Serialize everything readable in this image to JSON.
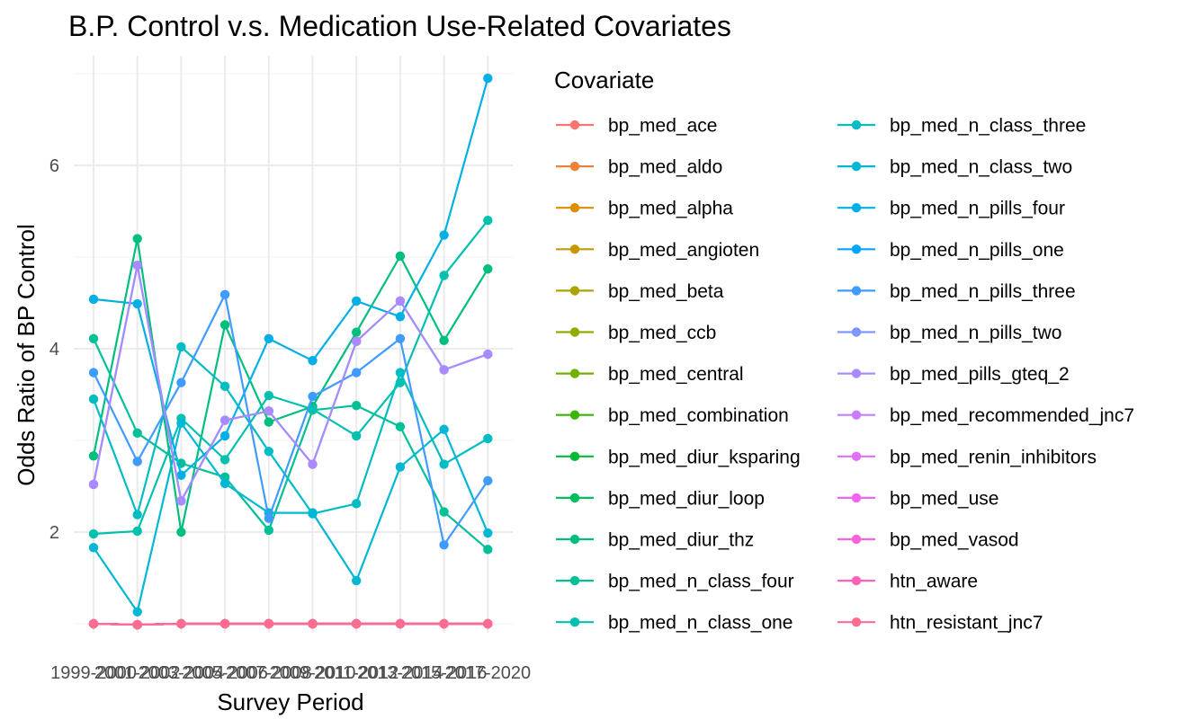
{
  "chart_data": {
    "type": "line",
    "title": "B.P. Control v.s. Medication Use-Related Covariates",
    "xlabel": "Survey Period",
    "ylabel": "Odds Ratio of BP Control",
    "legend_title": "Covariate",
    "legend_placement": "right",
    "grid": true,
    "x_ticks": [
      "1999-2000",
      "2001-2002",
      "2003-2004",
      "2005-2006",
      "2007-2008",
      "2009-2010",
      "2011-2012",
      "2013-2014",
      "2015-2016",
      "2017-2020"
    ],
    "y_ticks": [
      2,
      4,
      6
    ],
    "ylim": [
      0.75,
      7.15
    ],
    "series": [
      {
        "name": "bp_med_ace",
        "color": "#F8766D",
        "values": [
          1.0,
          0.99,
          1.0,
          1.0,
          1.0,
          1.0,
          1.0,
          1.0,
          1.0,
          1.0
        ]
      },
      {
        "name": "bp_med_aldo",
        "color": "#EC8239",
        "values": [
          1.0,
          0.99,
          1.0,
          1.0,
          1.0,
          1.0,
          1.0,
          1.0,
          1.0,
          1.0
        ]
      },
      {
        "name": "bp_med_alpha",
        "color": "#DB8E00",
        "values": [
          1.0,
          0.99,
          1.0,
          1.0,
          1.0,
          1.0,
          1.0,
          1.0,
          1.0,
          1.0
        ]
      },
      {
        "name": "bp_med_angioten",
        "color": "#C69900",
        "values": [
          1.0,
          0.99,
          1.0,
          1.0,
          1.0,
          1.0,
          1.0,
          1.0,
          1.0,
          1.0
        ]
      },
      {
        "name": "bp_med_beta",
        "color": "#AEA200",
        "values": [
          1.0,
          0.99,
          1.0,
          1.0,
          1.0,
          1.0,
          1.0,
          1.0,
          1.0,
          1.0
        ]
      },
      {
        "name": "bp_med_ccb",
        "color": "#93AA00",
        "values": [
          1.0,
          0.99,
          1.0,
          1.0,
          1.0,
          1.0,
          1.0,
          1.0,
          1.0,
          1.0
        ]
      },
      {
        "name": "bp_med_central",
        "color": "#70B000",
        "values": [
          1.0,
          0.99,
          1.0,
          1.0,
          1.0,
          1.0,
          1.0,
          1.0,
          1.0,
          1.0
        ]
      },
      {
        "name": "bp_med_combination",
        "color": "#39B600",
        "values": [
          1.0,
          0.99,
          1.0,
          1.0,
          1.0,
          1.0,
          1.0,
          1.0,
          1.0,
          1.0
        ]
      },
      {
        "name": "bp_med_diur_ksparing",
        "color": "#00BA38",
        "values": [
          1.0,
          0.99,
          1.0,
          1.0,
          1.0,
          1.0,
          1.0,
          1.0,
          1.0,
          1.0
        ]
      },
      {
        "name": "bp_med_diur_loop",
        "color": "#00BD5F",
        "values": [
          1.0,
          0.99,
          1.0,
          1.0,
          1.0,
          1.0,
          1.0,
          1.0,
          1.0,
          1.0
        ]
      },
      {
        "name": "bp_med_diur_thz",
        "color": "#00BF7D",
        "values": [
          2.83,
          5.2,
          2.0,
          4.26,
          3.2,
          3.37,
          4.18,
          5.01,
          4.09,
          4.87
        ]
      },
      {
        "name": "bp_med_n_class_four",
        "color": "#00C097",
        "values": [
          4.11,
          3.08,
          2.75,
          2.6,
          2.02,
          3.33,
          3.38,
          3.15,
          2.22,
          1.81
        ]
      },
      {
        "name": "bp_med_n_class_one",
        "color": "#00C0AF",
        "values": [
          1.98,
          2.01,
          3.24,
          2.79,
          3.49,
          3.34,
          3.05,
          3.63,
          4.8,
          5.4
        ]
      },
      {
        "name": "bp_med_n_class_three",
        "color": "#00BCC3",
        "values": [
          3.45,
          2.19,
          4.02,
          3.59,
          2.88,
          2.2,
          2.31,
          3.74,
          2.74,
          3.02
        ]
      },
      {
        "name": "bp_med_n_class_two",
        "color": "#00B8D5",
        "values": [
          1.83,
          1.13,
          3.19,
          2.53,
          2.21,
          2.21,
          1.47,
          2.71,
          3.12,
          1.99
        ]
      },
      {
        "name": "bp_med_n_pills_four",
        "color": "#00B0E5",
        "values": [
          4.54,
          4.49,
          2.62,
          3.05,
          4.11,
          3.87,
          4.52,
          4.35,
          5.24,
          6.95
        ]
      },
      {
        "name": "bp_med_n_pills_one",
        "color": "#00A5FF",
        "values": [
          1.0,
          0.99,
          1.0,
          1.0,
          1.0,
          1.0,
          1.0,
          1.0,
          1.0,
          1.0
        ]
      },
      {
        "name": "bp_med_n_pills_three",
        "color": "#3F9BFF",
        "values": [
          3.74,
          2.77,
          3.63,
          4.59,
          2.15,
          3.48,
          3.74,
          4.11,
          1.86,
          2.56
        ]
      },
      {
        "name": "bp_med_n_pills_two",
        "color": "#7F96FF",
        "values": [
          2.52,
          4.91,
          2.34,
          3.22,
          3.32,
          2.74,
          4.08,
          4.52,
          3.77,
          3.94
        ]
      },
      {
        "name": "bp_med_pills_gteq_2",
        "color": "#A98BFF",
        "values": [
          2.52,
          4.91,
          2.34,
          3.22,
          3.32,
          2.74,
          4.08,
          4.52,
          3.77,
          3.94
        ]
      },
      {
        "name": "bp_med_recommended_jnc7",
        "color": "#C77CFF",
        "values": [
          1.0,
          0.99,
          1.0,
          1.0,
          1.0,
          1.0,
          1.0,
          1.0,
          1.0,
          1.0
        ]
      },
      {
        "name": "bp_med_renin_inhibitors",
        "color": "#DF70F8",
        "values": [
          1.0,
          0.99,
          1.0,
          1.0,
          1.0,
          1.0,
          1.0,
          1.0,
          1.0,
          1.0
        ]
      },
      {
        "name": "bp_med_use",
        "color": "#F066EA",
        "values": [
          1.0,
          0.99,
          1.0,
          1.0,
          1.0,
          1.0,
          1.0,
          1.0,
          1.0,
          1.0
        ]
      },
      {
        "name": "bp_med_vasod",
        "color": "#FB61D7",
        "values": [
          1.0,
          0.99,
          1.0,
          1.0,
          1.0,
          1.0,
          1.0,
          1.0,
          1.0,
          1.0
        ]
      },
      {
        "name": "htn_aware",
        "color": "#FF63B6",
        "values": [
          1.0,
          0.99,
          1.0,
          1.0,
          1.0,
          1.0,
          1.0,
          1.0,
          1.0,
          1.0
        ]
      },
      {
        "name": "htn_resistant_jnc7",
        "color": "#FF6C91",
        "values": [
          1.0,
          0.99,
          1.0,
          1.0,
          1.0,
          1.0,
          1.0,
          1.0,
          1.0,
          1.0
        ]
      }
    ]
  }
}
